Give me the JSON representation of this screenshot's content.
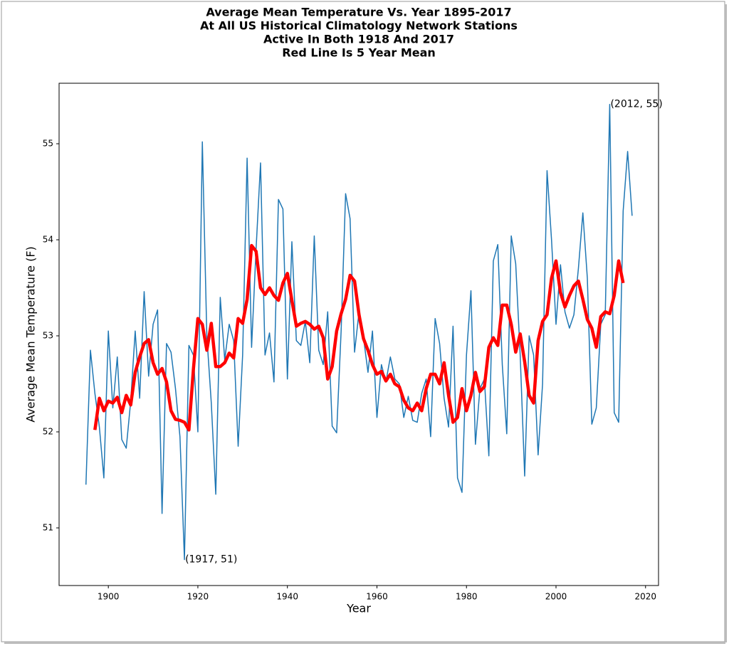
{
  "chart_data": {
    "type": "line",
    "title": [
      "Average Mean Temperature Vs. Year 1895-2017",
      "At All US Historical Climatology Network Stations",
      "Active In Both 1918 And 2017",
      "Red Line Is 5 Year Mean"
    ],
    "xlabel": "Year",
    "ylabel": "Average Mean Temperature (F)",
    "xlim": [
      1889,
      2022.9
    ],
    "ylim": [
      50.4,
      55.63
    ],
    "xticks": [
      1900,
      1920,
      1940,
      1960,
      1980,
      2000,
      2020
    ],
    "yticks": [
      51,
      52,
      53,
      54,
      55
    ],
    "grid": false,
    "x": [
      1895,
      1896,
      1897,
      1898,
      1899,
      1900,
      1901,
      1902,
      1903,
      1904,
      1905,
      1906,
      1907,
      1908,
      1909,
      1910,
      1911,
      1912,
      1913,
      1914,
      1915,
      1916,
      1917,
      1918,
      1919,
      1920,
      1921,
      1922,
      1923,
      1924,
      1925,
      1926,
      1927,
      1928,
      1929,
      1930,
      1931,
      1932,
      1933,
      1934,
      1935,
      1936,
      1937,
      1938,
      1939,
      1940,
      1941,
      1942,
      1943,
      1944,
      1945,
      1946,
      1947,
      1948,
      1949,
      1950,
      1951,
      1952,
      1953,
      1954,
      1955,
      1956,
      1957,
      1958,
      1959,
      1960,
      1961,
      1962,
      1963,
      1964,
      1965,
      1966,
      1967,
      1968,
      1969,
      1970,
      1971,
      1972,
      1973,
      1974,
      1975,
      1976,
      1977,
      1978,
      1979,
      1980,
      1981,
      1982,
      1983,
      1984,
      1985,
      1986,
      1987,
      1988,
      1989,
      1990,
      1991,
      1992,
      1993,
      1994,
      1995,
      1996,
      1997,
      1998,
      1999,
      2000,
      2001,
      2002,
      2003,
      2004,
      2005,
      2006,
      2007,
      2008,
      2009,
      2010,
      2011,
      2012,
      2013,
      2014,
      2015,
      2016,
      2017
    ],
    "series": [
      {
        "color": "#1f77b4",
        "width": 1.5,
        "values": [
          51.45,
          52.85,
          52.4,
          52.05,
          51.52,
          53.05,
          52.25,
          52.78,
          51.92,
          51.83,
          52.32,
          53.05,
          52.35,
          53.46,
          52.58,
          53.12,
          53.27,
          51.15,
          52.92,
          52.83,
          52.45,
          51.95,
          50.67,
          52.9,
          52.8,
          52.0,
          55.02,
          53.0,
          52.3,
          51.35,
          53.4,
          52.75,
          53.12,
          52.95,
          51.85,
          52.8,
          54.85,
          52.88,
          53.9,
          54.8,
          52.8,
          53.03,
          52.52,
          54.42,
          54.32,
          52.55,
          53.98,
          52.95,
          52.9,
          53.15,
          52.72,
          54.04,
          52.85,
          52.7,
          53.25,
          52.06,
          51.99,
          53.05,
          54.48,
          54.22,
          52.83,
          53.25,
          52.98,
          52.62,
          53.05,
          52.15,
          52.7,
          52.52,
          52.78,
          52.55,
          52.5,
          52.15,
          52.37,
          52.12,
          52.1,
          52.4,
          52.55,
          51.95,
          53.18,
          52.92,
          52.35,
          52.05,
          53.1,
          51.52,
          51.37,
          52.8,
          53.47,
          51.87,
          52.45,
          52.55,
          51.75,
          53.78,
          53.95,
          52.7,
          51.98,
          54.04,
          53.75,
          52.8,
          51.54,
          53.0,
          52.8,
          51.76,
          52.5,
          54.72,
          54.0,
          53.12,
          53.74,
          53.25,
          53.08,
          53.22,
          53.7,
          54.28,
          53.6,
          52.08,
          52.25,
          53.12,
          53.22,
          55.41,
          52.2,
          52.1,
          54.3,
          54.92,
          54.25
        ]
      },
      {
        "color": "#ff0000",
        "width": 4.5,
        "values": [
          null,
          null,
          52.02,
          52.35,
          52.22,
          52.32,
          52.3,
          52.36,
          52.2,
          52.38,
          52.28,
          52.62,
          52.78,
          52.92,
          52.96,
          52.72,
          52.6,
          52.66,
          52.52,
          52.22,
          52.13,
          52.12,
          52.1,
          52.02,
          52.65,
          53.18,
          53.12,
          52.85,
          53.13,
          52.68,
          52.68,
          52.72,
          52.82,
          52.77,
          53.18,
          53.13,
          53.38,
          53.94,
          53.88,
          53.5,
          53.43,
          53.5,
          53.42,
          53.37,
          53.55,
          53.65,
          53.37,
          53.1,
          53.13,
          53.15,
          53.12,
          53.07,
          53.1,
          52.98,
          52.55,
          52.68,
          53.05,
          53.23,
          53.38,
          53.63,
          53.57,
          53.22,
          52.97,
          52.85,
          52.7,
          52.6,
          52.63,
          52.53,
          52.6,
          52.5,
          52.47,
          52.33,
          52.25,
          52.22,
          52.3,
          52.22,
          52.45,
          52.6,
          52.6,
          52.5,
          52.72,
          52.38,
          52.1,
          52.15,
          52.45,
          52.22,
          52.38,
          52.62,
          52.42,
          52.47,
          52.88,
          52.98,
          52.9,
          53.32,
          53.32,
          53.12,
          52.83,
          53.02,
          52.73,
          52.38,
          52.3,
          52.95,
          53.15,
          53.22,
          53.6,
          53.78,
          53.45,
          53.3,
          53.42,
          53.52,
          53.57,
          53.38,
          53.17,
          53.08,
          52.88,
          53.2,
          53.25,
          53.23,
          53.42,
          53.78,
          53.55,
          null,
          null
        ]
      }
    ],
    "annotations": [
      {
        "text": "(2012, 55)",
        "x": 2012,
        "y": 55.41
      },
      {
        "text": "(1917, 51)",
        "x": 1917,
        "y": 50.67
      }
    ]
  }
}
